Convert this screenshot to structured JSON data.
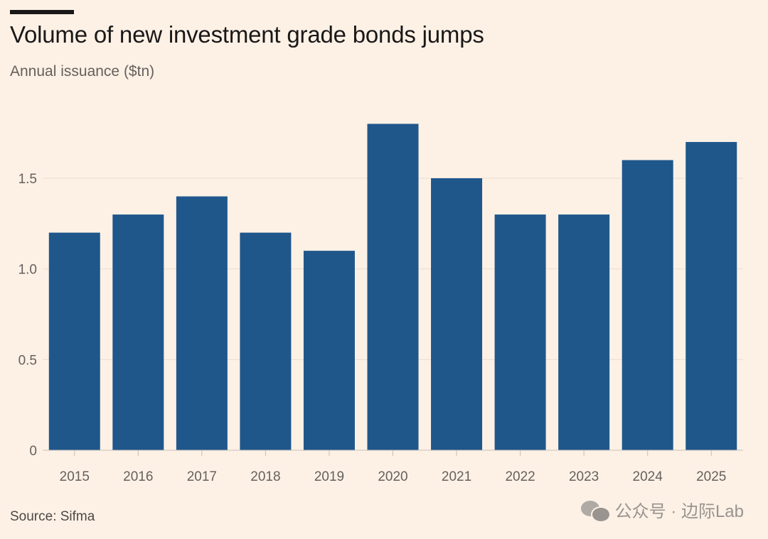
{
  "header": {
    "title": "Volume of new investment grade bonds jumps",
    "subtitle": "Annual issuance ($tn)"
  },
  "footer": {
    "source": "Source: Sifma",
    "watermark": "公众号 · 边际Lab"
  },
  "colors": {
    "bar": "#1f578b",
    "background": "#fdf1e6",
    "grid": "#e9ddd2",
    "axis_text": "#66605c"
  },
  "chart_data": {
    "type": "bar",
    "title": "Volume of new investment grade bonds jumps",
    "ylabel": "Annual issuance ($tn)",
    "xlabel": "",
    "categories": [
      "2015",
      "2016",
      "2017",
      "2018",
      "2019",
      "2020",
      "2021",
      "2022",
      "2023",
      "2024",
      "2025"
    ],
    "values": [
      1.2,
      1.3,
      1.4,
      1.2,
      1.1,
      1.8,
      1.5,
      1.3,
      1.3,
      1.6,
      1.7
    ],
    "ylim": [
      0,
      1.8
    ],
    "yticks": [
      0,
      0.5,
      1.0,
      1.5
    ],
    "ytick_labels": [
      "0",
      "0.5",
      "1.0",
      "1.5"
    ],
    "grid": true
  }
}
